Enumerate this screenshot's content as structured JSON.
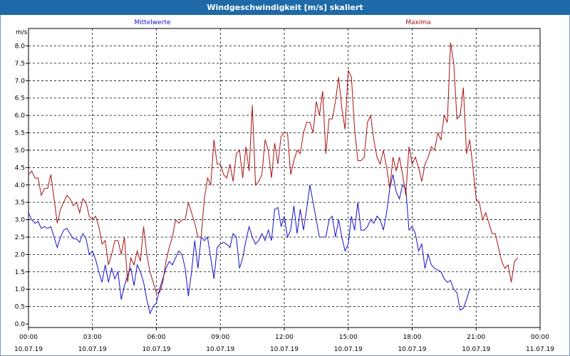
{
  "window": {
    "title": "Windgeschwindigkeit [m/s] skaliert"
  },
  "chart_data": {
    "type": "line",
    "title": "Windgeschwindigkeit [m/s] skaliert",
    "ylabel": "m/s",
    "ylim": [
      0,
      8.5
    ],
    "yticks": [
      "0.0",
      "0.5",
      "1.0",
      "1.5",
      "2.0",
      "2.5",
      "3.0",
      "3.5",
      "4.0",
      "4.5",
      "5.0",
      "5.5",
      "6.0",
      "6.5",
      "7.0",
      "7.5",
      "8.0"
    ],
    "xticks": [
      {
        "time": "00:00",
        "date": "10.07.19"
      },
      {
        "time": "03:00",
        "date": "10.07.19"
      },
      {
        "time": "06:00",
        "date": "10.07.19"
      },
      {
        "time": "09:00",
        "date": "10.07.19"
      },
      {
        "time": "12:00",
        "date": "10.07.19"
      },
      {
        "time": "15:00",
        "date": "10.07.19"
      },
      {
        "time": "18:00",
        "date": "10.07.19"
      },
      {
        "time": "21:00",
        "date": "10.07.19"
      },
      {
        "time": "00:00",
        "date": "11.07.19"
      }
    ],
    "grid": true,
    "series": [
      {
        "name": "Mittelwerte",
        "color": "#1111cc",
        "points": [
          [
            0.0,
            3.2
          ],
          [
            0.2,
            3.0
          ],
          [
            0.4,
            2.9
          ],
          [
            0.6,
            2.95
          ],
          [
            0.8,
            2.75
          ],
          [
            1.0,
            2.8
          ],
          [
            1.2,
            2.75
          ],
          [
            1.4,
            2.8
          ],
          [
            1.6,
            2.5
          ],
          [
            1.8,
            2.2
          ],
          [
            2.0,
            2.5
          ],
          [
            2.2,
            2.7
          ],
          [
            2.4,
            2.75
          ],
          [
            2.6,
            2.6
          ],
          [
            2.8,
            2.45
          ],
          [
            3.0,
            2.45
          ],
          [
            3.2,
            2.35
          ],
          [
            3.4,
            2.6
          ],
          [
            3.6,
            2.45
          ],
          [
            3.8,
            2.0
          ],
          [
            4.0,
            2.1
          ],
          [
            4.2,
            1.85
          ],
          [
            4.4,
            1.5
          ],
          [
            4.6,
            1.2
          ],
          [
            4.8,
            1.7
          ],
          [
            5.0,
            1.2
          ],
          [
            5.2,
            1.6
          ],
          [
            5.4,
            1.3
          ],
          [
            5.6,
            1.5
          ],
          [
            5.8,
            0.7
          ],
          [
            6.0,
            1.1
          ],
          [
            6.2,
            1.4
          ],
          [
            6.4,
            1.6
          ],
          [
            6.6,
            1.1
          ],
          [
            6.8,
            1.7
          ],
          [
            7.0,
            1.5
          ],
          [
            7.2,
            1.2
          ],
          [
            7.4,
            0.7
          ],
          [
            7.6,
            0.3
          ],
          [
            7.8,
            0.5
          ],
          [
            8.0,
            0.6
          ],
          [
            8.2,
            1.0
          ],
          [
            8.4,
            1.3
          ],
          [
            8.6,
            1.6
          ],
          [
            8.8,
            1.8
          ],
          [
            9.0,
            1.7
          ],
          [
            9.2,
            1.9
          ],
          [
            9.4,
            2.1
          ],
          [
            9.6,
            2.0
          ],
          [
            9.8,
            1.6
          ],
          [
            10.0,
            0.8
          ],
          [
            10.2,
            1.5
          ],
          [
            10.4,
            2.4
          ],
          [
            10.6,
            1.6
          ],
          [
            10.8,
            2.5
          ],
          [
            11.0,
            2.4
          ],
          [
            11.2,
            2.5
          ],
          [
            11.4,
            1.9
          ],
          [
            11.6,
            1.3
          ],
          [
            11.8,
            2.2
          ],
          [
            12.0,
            2.3
          ],
          [
            12.2,
            2.35
          ],
          [
            12.4,
            2.3
          ],
          [
            12.6,
            2.2
          ],
          [
            12.8,
            2.6
          ],
          [
            13.0,
            2.5
          ],
          [
            13.2,
            1.6
          ],
          [
            13.4,
            1.9
          ],
          [
            13.6,
            2.4
          ],
          [
            13.8,
            2.8
          ],
          [
            14.0,
            2.5
          ],
          [
            14.2,
            2.3
          ],
          [
            14.4,
            2.4
          ],
          [
            14.6,
            2.6
          ],
          [
            14.8,
            2.4
          ],
          [
            15.0,
            2.7
          ],
          [
            15.2,
            2.4
          ],
          [
            15.4,
            3.3
          ],
          [
            15.6,
            3.35
          ],
          [
            15.8,
            2.8
          ],
          [
            16.0,
            3.1
          ],
          [
            16.2,
            2.5
          ],
          [
            16.4,
            2.7
          ],
          [
            16.6,
            3.4
          ],
          [
            16.8,
            2.6
          ],
          [
            17.0,
            3.3
          ],
          [
            17.2,
            2.7
          ],
          [
            17.4,
            3.3
          ],
          [
            17.6,
            4.0
          ],
          [
            17.8,
            3.5
          ],
          [
            18.0,
            3.0
          ],
          [
            18.2,
            2.5
          ],
          [
            18.4,
            2.5
          ],
          [
            18.6,
            2.5
          ],
          [
            18.8,
            3.0
          ],
          [
            19.0,
            3.1
          ],
          [
            19.2,
            2.5
          ],
          [
            19.4,
            3.0
          ],
          [
            19.6,
            2.5
          ],
          [
            19.8,
            2.1
          ],
          [
            20.0,
            2.3
          ],
          [
            20.2,
            3.1
          ],
          [
            20.4,
            2.7
          ],
          [
            20.6,
            3.5
          ],
          [
            20.8,
            2.7
          ],
          [
            21.0,
            2.7
          ],
          [
            21.2,
            2.8
          ],
          [
            21.4,
            3.0
          ],
          [
            21.6,
            2.9
          ],
          [
            21.8,
            3.1
          ],
          [
            22.0,
            3.0
          ],
          [
            22.2,
            2.7
          ],
          [
            22.4,
            3.2
          ],
          [
            22.6,
            3.9
          ],
          [
            22.8,
            4.3
          ],
          [
            23.0,
            3.8
          ],
          [
            23.2,
            3.6
          ],
          [
            23.4,
            4.0
          ],
          [
            23.6,
            3.9
          ],
          [
            23.8,
            2.7
          ],
          [
            24.0,
            2.8
          ],
          [
            24.2,
            2.6
          ],
          [
            24.4,
            2.1
          ],
          [
            24.6,
            2.3
          ],
          [
            24.8,
            1.6
          ],
          [
            25.0,
            2.0
          ],
          [
            25.2,
            1.7
          ],
          [
            25.4,
            1.6
          ],
          [
            25.6,
            1.55
          ],
          [
            25.8,
            1.5
          ],
          [
            26.0,
            1.3
          ],
          [
            26.2,
            1.2
          ],
          [
            26.4,
            1.25
          ],
          [
            26.6,
            1.0
          ],
          [
            26.8,
            0.9
          ],
          [
            27.0,
            0.4
          ],
          [
            27.2,
            0.45
          ],
          [
            27.4,
            0.7
          ],
          [
            27.6,
            1.0
          ]
        ]
      },
      {
        "name": "Maxima",
        "color": "#aa1111",
        "points": [
          [
            0.0,
            4.3
          ],
          [
            0.2,
            4.4
          ],
          [
            0.4,
            4.2
          ],
          [
            0.6,
            4.2
          ],
          [
            0.8,
            3.7
          ],
          [
            1.0,
            3.9
          ],
          [
            1.2,
            3.9
          ],
          [
            1.4,
            4.3
          ],
          [
            1.6,
            3.6
          ],
          [
            1.8,
            2.9
          ],
          [
            2.0,
            3.3
          ],
          [
            2.2,
            3.5
          ],
          [
            2.4,
            3.7
          ],
          [
            2.6,
            3.6
          ],
          [
            2.8,
            3.4
          ],
          [
            3.0,
            3.5
          ],
          [
            3.2,
            3.2
          ],
          [
            3.4,
            3.6
          ],
          [
            3.6,
            3.5
          ],
          [
            3.8,
            3.1
          ],
          [
            4.0,
            3.0
          ],
          [
            4.2,
            3.1
          ],
          [
            4.4,
            2.8
          ],
          [
            4.6,
            2.3
          ],
          [
            4.8,
            2.4
          ],
          [
            5.0,
            1.7
          ],
          [
            5.2,
            2.0
          ],
          [
            5.4,
            2.4
          ],
          [
            5.6,
            2.4
          ],
          [
            5.8,
            2.0
          ],
          [
            6.0,
            2.5
          ],
          [
            6.2,
            1.2
          ],
          [
            6.4,
            1.9
          ],
          [
            6.6,
            1.7
          ],
          [
            6.8,
            2.1
          ],
          [
            7.0,
            1.8
          ],
          [
            7.2,
            2.8
          ],
          [
            7.4,
            2.0
          ],
          [
            7.6,
            1.5
          ],
          [
            7.8,
            1.2
          ],
          [
            8.0,
            0.9
          ],
          [
            8.2,
            0.9
          ],
          [
            8.4,
            1.2
          ],
          [
            8.6,
            1.8
          ],
          [
            8.8,
            2.2
          ],
          [
            9.0,
            2.5
          ],
          [
            9.2,
            3.0
          ],
          [
            9.4,
            2.9
          ],
          [
            9.6,
            3.0
          ],
          [
            9.8,
            3.0
          ],
          [
            10.0,
            3.5
          ],
          [
            10.2,
            3.2
          ],
          [
            10.4,
            2.9
          ],
          [
            10.6,
            2.5
          ],
          [
            10.8,
            2.5
          ],
          [
            11.0,
            3.6
          ],
          [
            11.2,
            4.2
          ],
          [
            11.4,
            4.0
          ],
          [
            11.6,
            5.3
          ],
          [
            11.8,
            4.6
          ],
          [
            12.0,
            4.6
          ],
          [
            12.2,
            4.3
          ],
          [
            12.4,
            4.2
          ],
          [
            12.6,
            4.6
          ],
          [
            12.8,
            4.1
          ],
          [
            13.0,
            4.9
          ],
          [
            13.2,
            5.0
          ],
          [
            13.4,
            4.2
          ],
          [
            13.6,
            5.1
          ],
          [
            13.8,
            4.4
          ],
          [
            14.0,
            6.3
          ],
          [
            14.2,
            4.0
          ],
          [
            14.4,
            4.1
          ],
          [
            14.6,
            4.3
          ],
          [
            14.8,
            5.3
          ],
          [
            15.0,
            5.0
          ],
          [
            15.2,
            4.2
          ],
          [
            15.4,
            5.2
          ],
          [
            15.6,
            4.6
          ],
          [
            15.8,
            5.4
          ],
          [
            16.0,
            5.5
          ],
          [
            16.2,
            5.5
          ],
          [
            16.4,
            4.3
          ],
          [
            16.6,
            4.7
          ],
          [
            16.8,
            5.0
          ],
          [
            17.0,
            4.9
          ],
          [
            17.2,
            5.5
          ],
          [
            17.4,
            5.8
          ],
          [
            17.6,
            5.8
          ],
          [
            17.8,
            5.5
          ],
          [
            18.0,
            6.4
          ],
          [
            18.2,
            6.0
          ],
          [
            18.4,
            6.7
          ],
          [
            18.6,
            4.9
          ],
          [
            18.8,
            5.9
          ],
          [
            19.0,
            5.9
          ],
          [
            19.2,
            6.4
          ],
          [
            19.4,
            7.1
          ],
          [
            19.6,
            6.2
          ],
          [
            19.8,
            5.6
          ],
          [
            20.0,
            7.3
          ],
          [
            20.2,
            7.1
          ],
          [
            20.4,
            5.6
          ],
          [
            20.6,
            4.7
          ],
          [
            20.8,
            4.7
          ],
          [
            21.0,
            4.8
          ],
          [
            21.2,
            5.8
          ],
          [
            21.4,
            6.0
          ],
          [
            21.6,
            5.3
          ],
          [
            21.8,
            4.8
          ],
          [
            22.0,
            4.6
          ],
          [
            22.2,
            5.0
          ],
          [
            22.4,
            4.5
          ],
          [
            22.6,
            3.9
          ],
          [
            22.8,
            4.8
          ],
          [
            23.0,
            4.4
          ],
          [
            23.2,
            4.8
          ],
          [
            23.4,
            4.3
          ],
          [
            23.6,
            3.7
          ],
          [
            23.8,
            5.1
          ],
          [
            24.0,
            4.6
          ],
          [
            24.2,
            4.8
          ],
          [
            24.4,
            4.5
          ],
          [
            24.6,
            4.1
          ],
          [
            24.8,
            4.6
          ],
          [
            25.0,
            4.8
          ],
          [
            25.2,
            5.1
          ],
          [
            25.4,
            5.0
          ],
          [
            25.6,
            5.5
          ],
          [
            25.8,
            5.3
          ],
          [
            26.0,
            6.0
          ],
          [
            26.2,
            5.8
          ],
          [
            26.4,
            8.1
          ],
          [
            26.6,
            7.5
          ],
          [
            26.8,
            5.9
          ],
          [
            27.0,
            6.0
          ],
          [
            27.2,
            6.8
          ],
          [
            27.4,
            4.9
          ],
          [
            27.6,
            5.3
          ],
          [
            27.8,
            4.5
          ],
          [
            28.0,
            3.6
          ],
          [
            28.2,
            3.5
          ],
          [
            28.4,
            3.0
          ],
          [
            28.6,
            3.2
          ],
          [
            28.8,
            2.9
          ],
          [
            29.0,
            2.6
          ],
          [
            29.2,
            2.6
          ],
          [
            29.4,
            2.2
          ],
          [
            29.6,
            1.8
          ],
          [
            29.8,
            1.6
          ],
          [
            30.0,
            1.7
          ],
          [
            30.2,
            1.2
          ],
          [
            30.4,
            1.8
          ],
          [
            30.6,
            1.9
          ]
        ]
      }
    ]
  }
}
